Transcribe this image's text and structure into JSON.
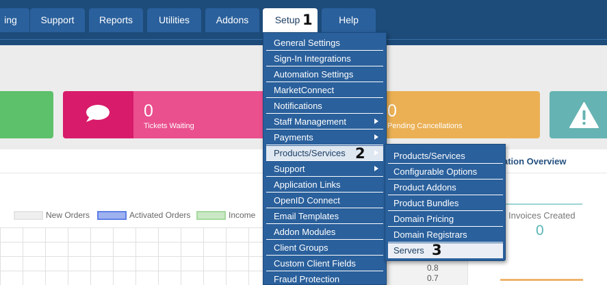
{
  "nav": {
    "tabs": [
      {
        "label": "ing",
        "name": "tab-billing"
      },
      {
        "label": "Support",
        "name": "tab-support"
      },
      {
        "label": "Reports",
        "name": "tab-reports"
      },
      {
        "label": "Utilities",
        "name": "tab-utilities"
      },
      {
        "label": "Addons",
        "name": "tab-addons"
      },
      {
        "label": "Setup",
        "name": "tab-setup",
        "active": true
      },
      {
        "label": "Help",
        "name": "tab-help"
      }
    ]
  },
  "annotations": {
    "step1": "1",
    "step2": "2",
    "step3": "3"
  },
  "stats": {
    "tickets_value": "0",
    "tickets_label": "Tickets Waiting",
    "cancellations_value": "0",
    "cancellations_label": "Pending Cancellations"
  },
  "setup_menu": {
    "items": [
      {
        "label": "General Settings"
      },
      {
        "label": "Sign-In Integrations"
      },
      {
        "label": "Automation Settings"
      },
      {
        "label": "MarketConnect"
      },
      {
        "label": "Notifications"
      },
      {
        "label": "Staff Management",
        "submenu": true
      },
      {
        "label": "Payments",
        "submenu": true
      },
      {
        "label": "Products/Services",
        "submenu": true,
        "active": true
      },
      {
        "label": "Support",
        "submenu": true
      },
      {
        "label": "Application Links"
      },
      {
        "label": "OpenID Connect"
      },
      {
        "label": "Email Templates"
      },
      {
        "label": "Addon Modules"
      },
      {
        "label": "Client Groups"
      },
      {
        "label": "Custom Client Fields"
      },
      {
        "label": "Fraud Protection"
      }
    ]
  },
  "products_submenu": {
    "items": [
      {
        "label": "Products/Services"
      },
      {
        "label": "Configurable Options"
      },
      {
        "label": "Product Addons"
      },
      {
        "label": "Product Bundles"
      },
      {
        "label": "Domain Pricing"
      },
      {
        "label": "Domain Registrars"
      },
      {
        "label": "Servers",
        "active": true
      }
    ]
  },
  "chart": {
    "legend": [
      "New Orders",
      "Activated Orders",
      "Income"
    ],
    "legend_colors": [
      "#e4e4e4",
      "#5f7fe6",
      "#a6d99e"
    ],
    "y_ticks": [
      "0.8",
      "0.7"
    ]
  },
  "overview": {
    "title": "ation Overview",
    "invoices_label": "Invoices Created",
    "invoices_value": "0"
  },
  "icons": {
    "tickets": "speech-bubble-icon",
    "alert": "warning-icon"
  }
}
